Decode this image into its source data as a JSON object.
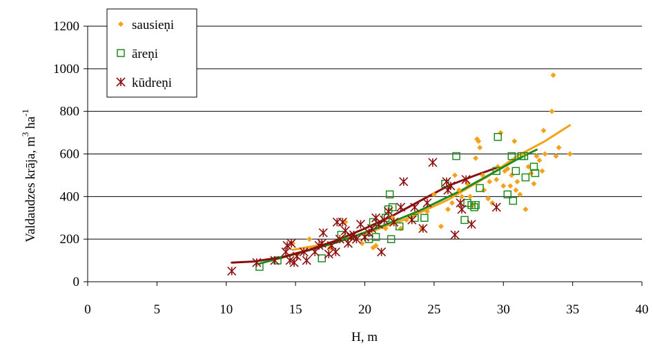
{
  "chart_data": {
    "type": "scatter",
    "title": "",
    "xlabel": "H, m",
    "ylabel": "Valdaudzes krāja, m",
    "ylabel_sup1": "3",
    "ylabel_unit": " ha",
    "ylabel_sup2": "-1",
    "xlim": [
      0,
      40
    ],
    "ylim": [
      0,
      1200
    ],
    "xticks": [
      "0",
      "5",
      "10",
      "15",
      "20",
      "25",
      "30",
      "35",
      "40"
    ],
    "yticks": [
      "0",
      "200",
      "400",
      "600",
      "800",
      "1000",
      "1200"
    ],
    "grid": "horizontal",
    "legend_position": "top-left",
    "series": [
      {
        "name": "sausieņi",
        "marker": "diamond",
        "color": "#F5A21B",
        "points": [
          [
            14.8,
            180
          ],
          [
            16.0,
            200
          ],
          [
            17.5,
            160
          ],
          [
            18.6,
            280
          ],
          [
            19.8,
            180
          ],
          [
            20.6,
            160
          ],
          [
            20.8,
            170
          ],
          [
            21.5,
            250
          ],
          [
            22.0,
            300
          ],
          [
            22.6,
            250
          ],
          [
            23.0,
            290
          ],
          [
            23.6,
            310
          ],
          [
            24.1,
            250
          ],
          [
            24.5,
            330
          ],
          [
            25.0,
            410
          ],
          [
            25.5,
            260
          ],
          [
            26.0,
            340
          ],
          [
            26.3,
            370
          ],
          [
            26.5,
            500
          ],
          [
            26.8,
            430
          ],
          [
            27.0,
            400
          ],
          [
            27.4,
            460
          ],
          [
            27.6,
            400
          ],
          [
            27.8,
            360
          ],
          [
            28.0,
            580
          ],
          [
            28.1,
            670
          ],
          [
            28.2,
            660
          ],
          [
            28.3,
            630
          ],
          [
            28.5,
            500
          ],
          [
            28.6,
            430
          ],
          [
            28.9,
            390
          ],
          [
            29.0,
            470
          ],
          [
            29.2,
            370
          ],
          [
            29.5,
            480
          ],
          [
            29.6,
            540
          ],
          [
            29.8,
            700
          ],
          [
            30.0,
            450
          ],
          [
            30.1,
            520
          ],
          [
            30.3,
            530
          ],
          [
            30.5,
            450
          ],
          [
            30.6,
            500
          ],
          [
            30.8,
            660
          ],
          [
            30.9,
            430
          ],
          [
            31.0,
            470
          ],
          [
            31.2,
            410
          ],
          [
            31.5,
            600
          ],
          [
            31.6,
            340
          ],
          [
            31.8,
            540
          ],
          [
            32.0,
            510
          ],
          [
            32.2,
            460
          ],
          [
            32.4,
            590
          ],
          [
            32.6,
            570
          ],
          [
            32.8,
            520
          ],
          [
            32.9,
            710
          ],
          [
            33.0,
            600
          ],
          [
            33.5,
            800
          ],
          [
            33.6,
            970
          ],
          [
            33.8,
            590
          ],
          [
            34.8,
            600
          ],
          [
            34.0,
            630
          ]
        ],
        "trend": [
          [
            14.8,
            150
          ],
          [
            17,
            175
          ],
          [
            20,
            225
          ],
          [
            23,
            295
          ],
          [
            26,
            385
          ],
          [
            29,
            500
          ],
          [
            31,
            590
          ],
          [
            33,
            660
          ],
          [
            34.8,
            735
          ]
        ]
      },
      {
        "name": "āreņi",
        "marker": "square",
        "color": "#1E8B1E",
        "points": [
          [
            12.4,
            70
          ],
          [
            13.7,
            100
          ],
          [
            16.9,
            110
          ],
          [
            18.3,
            220
          ],
          [
            20.3,
            200
          ],
          [
            20.6,
            280
          ],
          [
            20.8,
            210
          ],
          [
            21.5,
            300
          ],
          [
            21.7,
            340
          ],
          [
            21.8,
            410
          ],
          [
            21.9,
            200
          ],
          [
            22.0,
            350
          ],
          [
            22.5,
            260
          ],
          [
            23.6,
            300
          ],
          [
            24.3,
            300
          ],
          [
            25.8,
            460
          ],
          [
            26.6,
            590
          ],
          [
            27.2,
            290
          ],
          [
            27.4,
            370
          ],
          [
            27.7,
            360
          ],
          [
            27.9,
            350
          ],
          [
            28.0,
            360
          ],
          [
            28.3,
            440
          ],
          [
            29.5,
            520
          ],
          [
            29.6,
            680
          ],
          [
            30.3,
            410
          ],
          [
            30.6,
            590
          ],
          [
            30.7,
            380
          ],
          [
            30.9,
            520
          ],
          [
            31.3,
            590
          ],
          [
            31.5,
            590
          ],
          [
            31.6,
            490
          ],
          [
            32.2,
            540
          ],
          [
            32.3,
            510
          ]
        ],
        "trend": [
          [
            12.4,
            85
          ],
          [
            15,
            130
          ],
          [
            18,
            185
          ],
          [
            21,
            255
          ],
          [
            24,
            335
          ],
          [
            27,
            430
          ],
          [
            29.5,
            520
          ],
          [
            31,
            575
          ],
          [
            32.4,
            620
          ]
        ]
      },
      {
        "name": "kūdreņi",
        "marker": "asterisk",
        "color": "#8B0E0E",
        "points": [
          [
            10.4,
            50
          ],
          [
            12.2,
            90
          ],
          [
            13.5,
            100
          ],
          [
            14.3,
            140
          ],
          [
            14.4,
            170
          ],
          [
            14.6,
            100
          ],
          [
            14.7,
            180
          ],
          [
            14.9,
            90
          ],
          [
            15.1,
            120
          ],
          [
            15.6,
            140
          ],
          [
            15.8,
            100
          ],
          [
            16.4,
            140
          ],
          [
            16.7,
            170
          ],
          [
            16.9,
            180
          ],
          [
            17.0,
            230
          ],
          [
            17.4,
            130
          ],
          [
            17.6,
            170
          ],
          [
            17.9,
            140
          ],
          [
            18.0,
            280
          ],
          [
            18.2,
            200
          ],
          [
            18.4,
            280
          ],
          [
            18.6,
            240
          ],
          [
            18.8,
            180
          ],
          [
            19.0,
            210
          ],
          [
            19.2,
            220
          ],
          [
            19.4,
            200
          ],
          [
            19.7,
            270
          ],
          [
            20.0,
            210
          ],
          [
            20.3,
            230
          ],
          [
            20.5,
            250
          ],
          [
            20.8,
            300
          ],
          [
            21.0,
            270
          ],
          [
            21.2,
            140
          ],
          [
            21.4,
            290
          ],
          [
            21.7,
            330
          ],
          [
            22.1,
            280
          ],
          [
            22.6,
            350
          ],
          [
            22.8,
            470
          ],
          [
            23.4,
            290
          ],
          [
            23.6,
            350
          ],
          [
            24.2,
            250
          ],
          [
            24.5,
            370
          ],
          [
            24.9,
            560
          ],
          [
            25.9,
            470
          ],
          [
            26.0,
            430
          ],
          [
            26.5,
            220
          ],
          [
            26.9,
            370
          ],
          [
            27.0,
            340
          ],
          [
            27.3,
            480
          ],
          [
            27.7,
            270
          ],
          [
            29.5,
            350
          ],
          [
            26.2,
            450
          ]
        ],
        "trend": [
          [
            10.4,
            90
          ],
          [
            12,
            95
          ],
          [
            14,
            115
          ],
          [
            16,
            150
          ],
          [
            18,
            195
          ],
          [
            20,
            250
          ],
          [
            22,
            310
          ],
          [
            24,
            380
          ],
          [
            26,
            450
          ],
          [
            28,
            500
          ],
          [
            29.5,
            535
          ]
        ]
      }
    ]
  }
}
